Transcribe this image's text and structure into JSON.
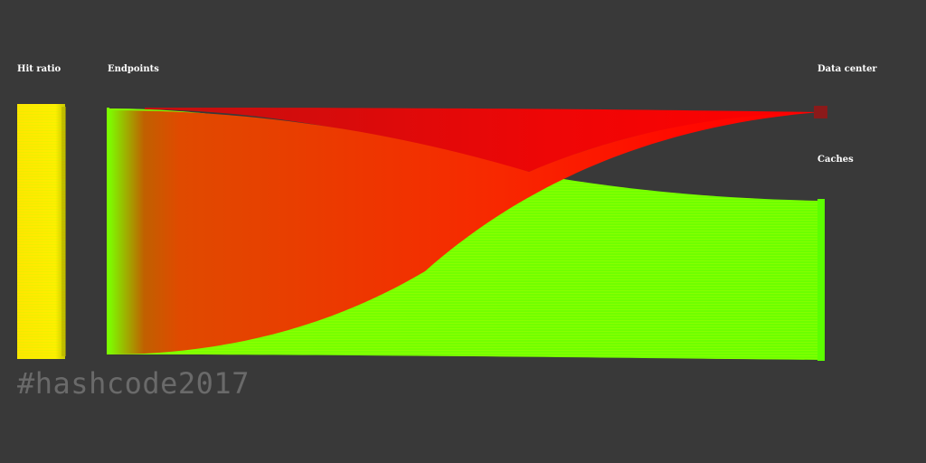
{
  "labels": {
    "hit_ratio": "Hit ratio",
    "endpoints": "Endpoints",
    "data_center": "Data center",
    "caches": "Caches"
  },
  "hashtag": "#hashcode2017",
  "colors": {
    "background": "#393939",
    "hit_ratio_bar": "#ffe600",
    "cache_hit_flow": "#7cff00",
    "data_center_flow": "#ff0000",
    "caches_node": "#5cff00",
    "data_center_node": "#8b1a1a",
    "hashtag_text": "#6a6a6a"
  }
}
